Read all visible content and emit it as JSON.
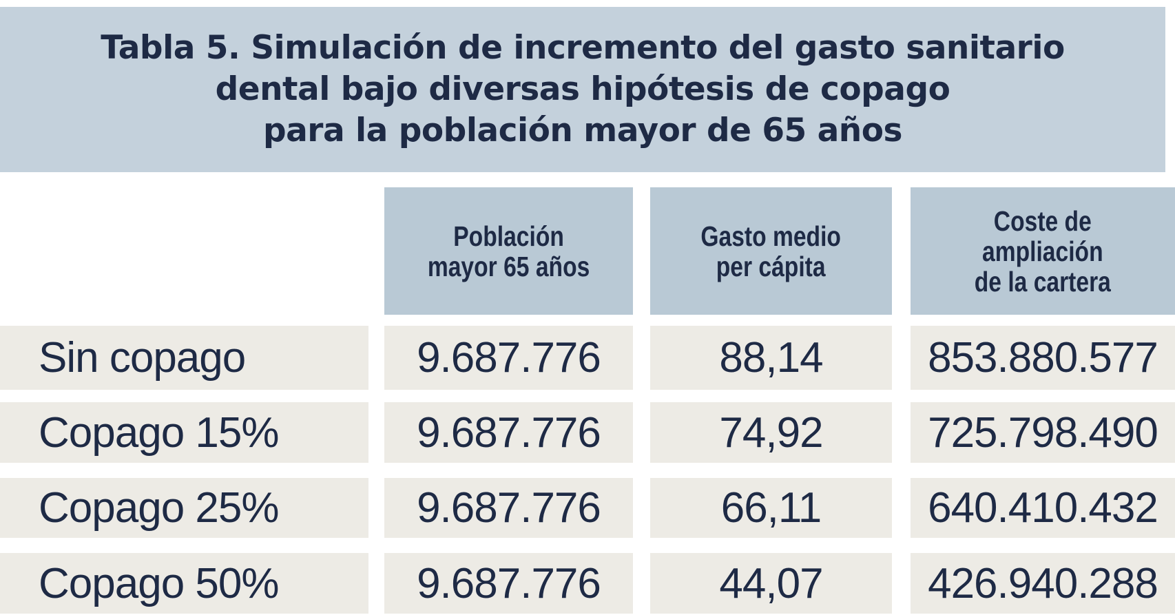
{
  "title": {
    "lines": [
      "Tabla 5. Simulación de incremento del gasto sanitario",
      "dental bajo diversas hipótesis de copago",
      "para la población mayor de 65 años"
    ]
  },
  "table": {
    "headers": [
      "Población\nmayor 65 años",
      "Gasto medio\nper cápita",
      "Coste de\nampliación\nde la cartera"
    ],
    "rows": [
      {
        "label": "Sin copago",
        "poblacion": "9.687.776",
        "gasto": "88,14",
        "coste": "853.880.577"
      },
      {
        "label": "Copago 15%",
        "poblacion": "9.687.776",
        "gasto": "74,92",
        "coste": "725.798.490"
      },
      {
        "label": "Copago 25%",
        "poblacion": "9.687.776",
        "gasto": "66,11",
        "coste": "640.410.432"
      },
      {
        "label": "Copago 50%",
        "poblacion": "9.687.776",
        "gasto": "44,07",
        "coste": "426.940.288"
      }
    ]
  },
  "colors": {
    "title_bg": "#c4d1dc",
    "header_bg": "#b9c9d5",
    "row_bg": "#edebe5",
    "text": "#1e2a45"
  }
}
